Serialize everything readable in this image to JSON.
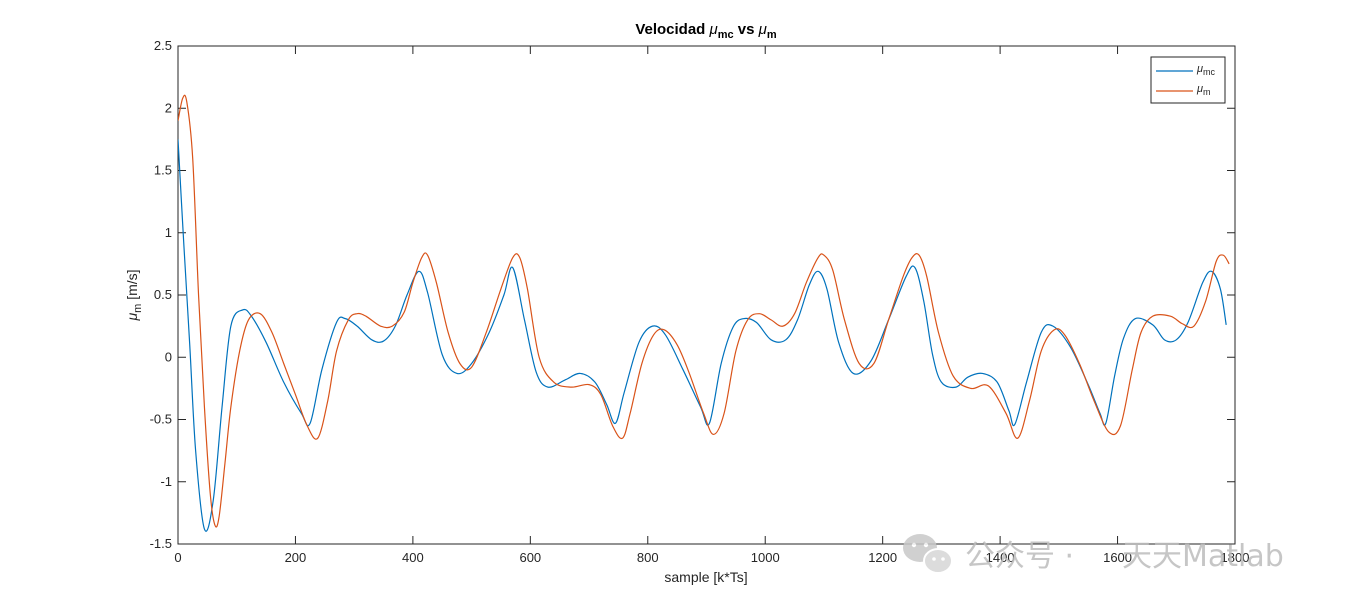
{
  "chart_data": {
    "type": "line",
    "title": {
      "main": "Velocidad ",
      "sym1": "μ",
      "sub1": "mc",
      "mid": " vs ",
      "sym2": "μ",
      "sub2": "m"
    },
    "xlabel": "sample [k*Ts]",
    "ylabel": {
      "sym": "μ",
      "sub": "m",
      "units": " [m/s]"
    },
    "xlim": [
      0,
      1800
    ],
    "ylim": [
      -1.5,
      2.5
    ],
    "xticks": [
      0,
      200,
      400,
      600,
      800,
      1000,
      1200,
      1400,
      1600,
      1800
    ],
    "yticks": [
      -1.5,
      -1,
      -0.5,
      0,
      0.5,
      1,
      1.5,
      2,
      2.5
    ],
    "xtick_labels": [
      "0",
      "200",
      "400",
      "600",
      "800",
      "1000",
      "1200",
      "1400",
      "1600",
      "1800"
    ],
    "ytick_labels": [
      "-1.5",
      "-1",
      "-0.5",
      "0",
      "0.5",
      "1",
      "1.5",
      "2",
      "2.5"
    ],
    "grid": false,
    "legend_position": "top-right",
    "series": [
      {
        "name": "μ_mc",
        "legend": {
          "sym": "μ",
          "sub": "mc"
        },
        "color": "#0072BD",
        "x": [
          0,
          10,
          20,
          30,
          45,
          60,
          75,
          90,
          110,
          125,
          150,
          180,
          210,
          225,
          245,
          270,
          285,
          305,
          330,
          350,
          370,
          390,
          410,
          425,
          450,
          475,
          500,
          530,
          555,
          570,
          590,
          610,
          630,
          660,
          685,
          710,
          730,
          745,
          760,
          785,
          808,
          830,
          860,
          890,
          905,
          925,
          945,
          963,
          985,
          1010,
          1035,
          1055,
          1075,
          1090,
          1105,
          1125,
          1150,
          1180,
          1210,
          1240,
          1255,
          1270,
          1285,
          1300,
          1325,
          1345,
          1370,
          1395,
          1415,
          1425,
          1445,
          1470,
          1490,
          1520,
          1550,
          1570,
          1580,
          1595,
          1610,
          1630,
          1660,
          1680,
          1700,
          1720,
          1745,
          1760,
          1775,
          1785
        ],
        "values": [
          1.75,
          0.9,
          0.1,
          -0.75,
          -1.38,
          -1.15,
          -0.4,
          0.25,
          0.38,
          0.33,
          0.12,
          -0.2,
          -0.45,
          -0.53,
          -0.1,
          0.28,
          0.31,
          0.25,
          0.14,
          0.13,
          0.25,
          0.5,
          0.69,
          0.52,
          0.02,
          -0.13,
          -0.05,
          0.2,
          0.5,
          0.72,
          0.3,
          -0.12,
          -0.24,
          -0.18,
          -0.13,
          -0.2,
          -0.38,
          -0.53,
          -0.28,
          0.12,
          0.25,
          0.18,
          -0.1,
          -0.4,
          -0.53,
          -0.05,
          0.24,
          0.31,
          0.28,
          0.14,
          0.14,
          0.3,
          0.58,
          0.69,
          0.55,
          0.12,
          -0.13,
          -0.03,
          0.3,
          0.65,
          0.72,
          0.45,
          0.02,
          -0.2,
          -0.24,
          -0.16,
          -0.13,
          -0.2,
          -0.43,
          -0.54,
          -0.2,
          0.2,
          0.25,
          0.08,
          -0.22,
          -0.45,
          -0.53,
          -0.15,
          0.15,
          0.31,
          0.26,
          0.14,
          0.14,
          0.28,
          0.6,
          0.69,
          0.55,
          0.26
        ]
      },
      {
        "name": "μ_m",
        "legend": {
          "sym": "μ",
          "sub": "m"
        },
        "color": "#D95319",
        "x": [
          0,
          8,
          15,
          25,
          35,
          45,
          55,
          63,
          70,
          80,
          90,
          105,
          120,
          140,
          160,
          180,
          200,
          220,
          238,
          255,
          270,
          290,
          305,
          320,
          345,
          365,
          385,
          400,
          415,
          425,
          440,
          460,
          480,
          500,
          525,
          550,
          570,
          582,
          595,
          615,
          640,
          670,
          700,
          720,
          740,
          757,
          770,
          790,
          810,
          828,
          850,
          870,
          895,
          912,
          930,
          950,
          970,
          990,
          1010,
          1030,
          1050,
          1070,
          1090,
          1100,
          1115,
          1135,
          1160,
          1185,
          1210,
          1235,
          1250,
          1262,
          1275,
          1295,
          1320,
          1350,
          1380,
          1410,
          1430,
          1450,
          1470,
          1492,
          1510,
          1535,
          1560,
          1585,
          1605,
          1625,
          1640,
          1660,
          1690,
          1710,
          1730,
          1750,
          1768,
          1780,
          1790
        ],
        "values": [
          1.9,
          2.08,
          2.05,
          1.6,
          0.5,
          -0.4,
          -1.1,
          -1.35,
          -1.28,
          -0.85,
          -0.4,
          0.05,
          0.3,
          0.35,
          0.2,
          -0.05,
          -0.3,
          -0.55,
          -0.65,
          -0.35,
          0.05,
          0.3,
          0.35,
          0.33,
          0.25,
          0.25,
          0.36,
          0.6,
          0.8,
          0.82,
          0.6,
          0.2,
          -0.05,
          -0.08,
          0.2,
          0.55,
          0.8,
          0.8,
          0.55,
          0.0,
          -0.2,
          -0.24,
          -0.22,
          -0.3,
          -0.55,
          -0.65,
          -0.45,
          -0.05,
          0.18,
          0.22,
          0.1,
          -0.12,
          -0.45,
          -0.62,
          -0.45,
          0.05,
          0.3,
          0.35,
          0.3,
          0.25,
          0.35,
          0.6,
          0.8,
          0.82,
          0.7,
          0.3,
          -0.05,
          -0.05,
          0.3,
          0.65,
          0.8,
          0.82,
          0.65,
          0.2,
          -0.15,
          -0.25,
          -0.23,
          -0.45,
          -0.65,
          -0.35,
          0.05,
          0.22,
          0.18,
          -0.05,
          -0.35,
          -0.6,
          -0.55,
          -0.1,
          0.2,
          0.33,
          0.33,
          0.27,
          0.25,
          0.45,
          0.77,
          0.82,
          0.75
        ]
      }
    ]
  },
  "watermark": {
    "icon": "wechat-icon",
    "text_left": "公众号 · ",
    "text_right": "天天Matlab"
  }
}
